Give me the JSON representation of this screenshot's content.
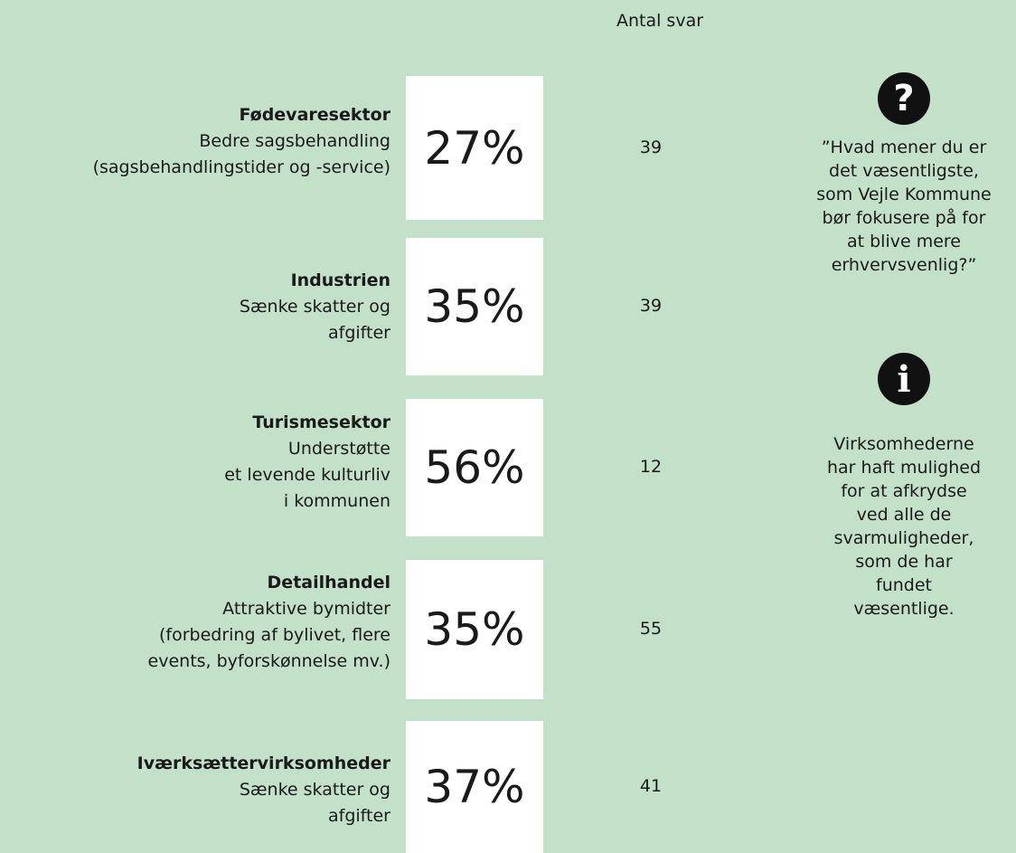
{
  "header": {
    "count_label": "Antal svar"
  },
  "rows": [
    {
      "sector": "Fødevaresektor",
      "lines": [
        "Bedre sagsbehandling",
        "(sagsbehandlingstider og -service)"
      ],
      "percent": "27%",
      "count": 39
    },
    {
      "sector": "Industrien",
      "lines": [
        "Sænke skatter og",
        "afgifter"
      ],
      "percent": "35%",
      "count": 39
    },
    {
      "sector": "Turismesektor",
      "lines": [
        "Understøtte",
        "et levende kulturliv",
        "i kommunen"
      ],
      "percent": "56%",
      "count": 12
    },
    {
      "sector": "Detailhandel",
      "lines": [
        "Attraktive bymidter",
        "(forbedring af bylivet, flere",
        "events, byforskønnelse mv.)"
      ],
      "percent": "35%",
      "count": 55
    },
    {
      "sector": "Iværksættervirksomheder",
      "lines": [
        "Sænke skatter og",
        "afgifter"
      ],
      "percent": "37%",
      "count": 41
    }
  ],
  "sidebar": {
    "question": {
      "icon": "?",
      "lines": [
        "”Hvad mener du er",
        "det væsentligste,",
        "som Vejle Kommune",
        "bør fokusere på for",
        "at blive mere",
        "erhvervsvenlig?”"
      ]
    },
    "info": {
      "icon": "i",
      "lines": [
        "Virksomhederne",
        "har haft mulighed",
        "for at afkrydse",
        "ved alle de",
        "svarmuligheder,",
        "som de har",
        "fundet",
        "væsentlige."
      ]
    }
  }
}
